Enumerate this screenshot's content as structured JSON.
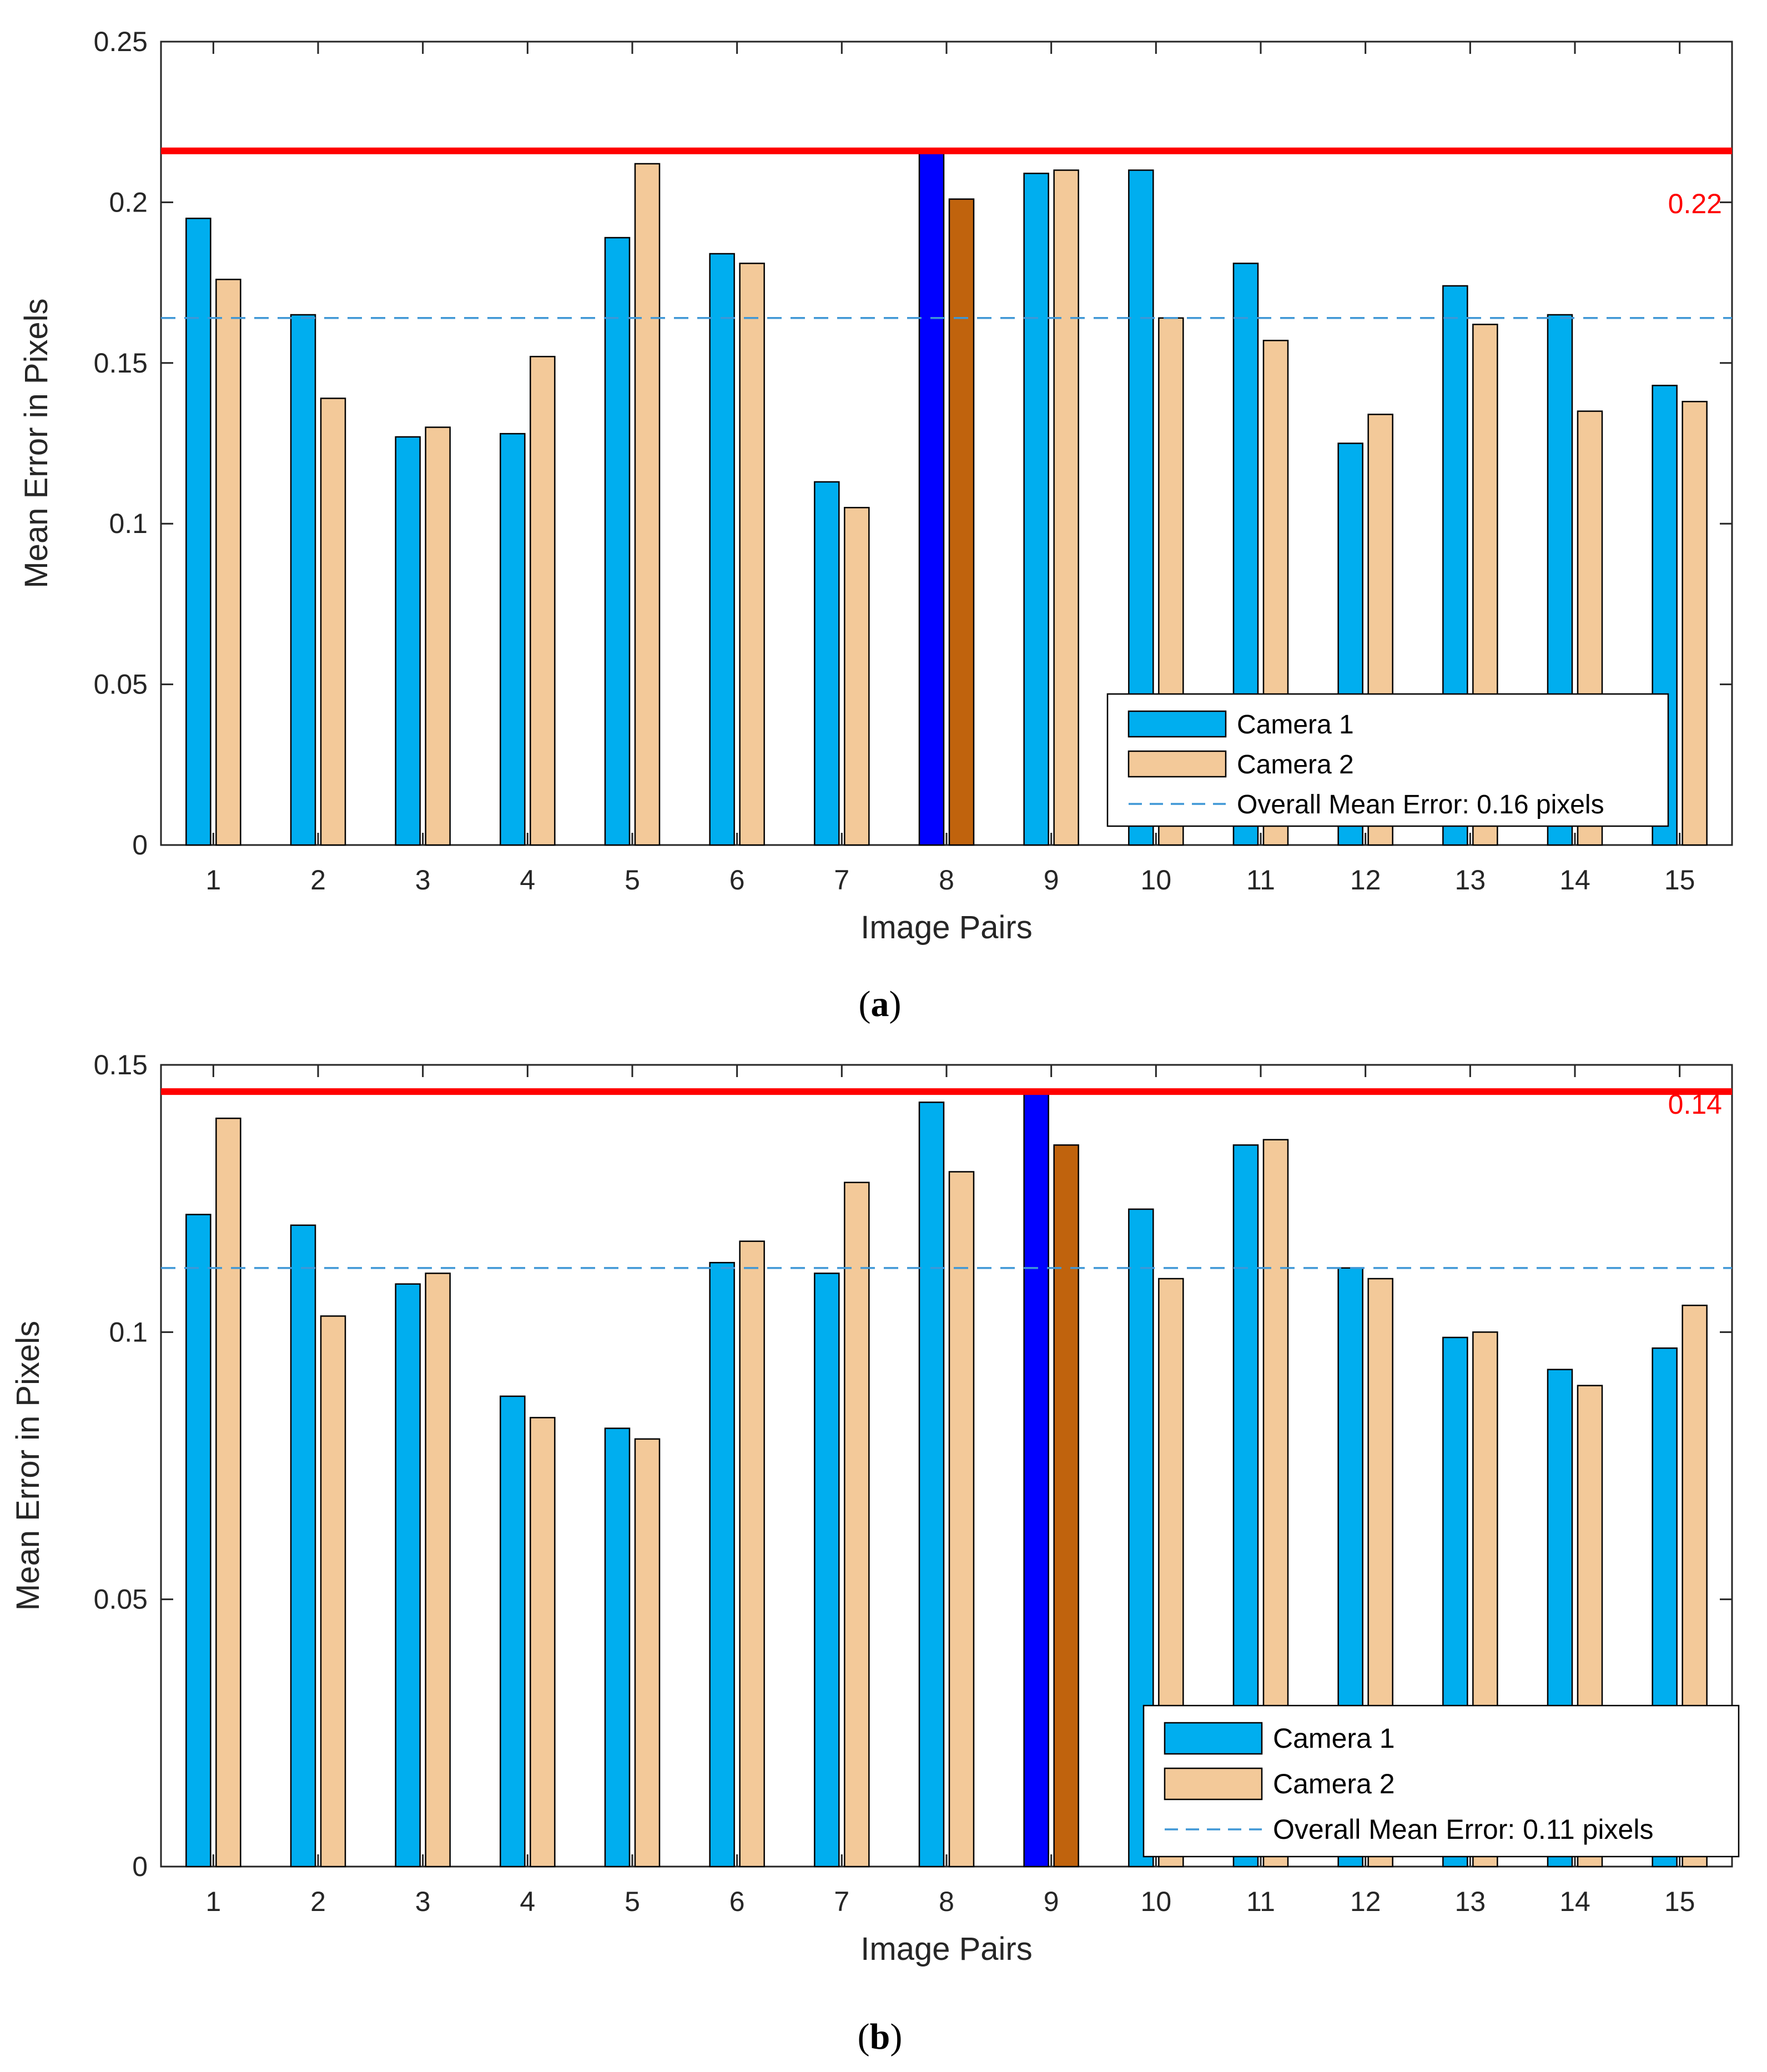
{
  "colors": {
    "camera1": "#00AEEF",
    "camera2": "#F3C999",
    "camera1_highlight": "#0000FF",
    "camera2_highlight": "#C0630D",
    "max_line": "#FF0000",
    "mean_line": "#3F97D6",
    "axis": "#262626"
  },
  "chart_data": [
    {
      "type": "bar",
      "panel": "a",
      "caption": {
        "open": "(",
        "letter": "a",
        "close": ")"
      },
      "xlabel": "Image Pairs",
      "ylabel": "Mean Error in Pixels",
      "categories": [
        "1",
        "2",
        "3",
        "4",
        "5",
        "6",
        "7",
        "8",
        "9",
        "10",
        "11",
        "12",
        "13",
        "14",
        "15"
      ],
      "series": [
        {
          "name": "Camera 1",
          "values": [
            0.195,
            0.165,
            0.127,
            0.128,
            0.189,
            0.184,
            0.113,
            0.216,
            0.209,
            0.21,
            0.181,
            0.125,
            0.174,
            0.165,
            0.143
          ]
        },
        {
          "name": "Camera 2",
          "values": [
            0.176,
            0.139,
            0.13,
            0.152,
            0.212,
            0.181,
            0.105,
            0.201,
            0.21,
            0.164,
            0.157,
            0.134,
            0.162,
            0.135,
            0.138
          ]
        }
      ],
      "highlight_index": 7,
      "ylim": [
        0,
        0.25
      ],
      "yticks": [
        "0",
        "0.05",
        "0.1",
        "0.15",
        "0.2",
        "0.25"
      ],
      "ytick_values": [
        0,
        0.05,
        0.1,
        0.15,
        0.2,
        0.25
      ],
      "max_line": {
        "value": 0.216,
        "label": "0.22"
      },
      "mean_line": {
        "value": 0.164,
        "label": "Overall Mean Error: 0.16 pixels"
      },
      "legend": {
        "position": "bottom-right",
        "entries": [
          "Camera 1",
          "Camera 2",
          "Overall Mean Error: 0.16 pixels"
        ]
      }
    },
    {
      "type": "bar",
      "panel": "b",
      "caption": {
        "open": "(",
        "letter": "b",
        "close": ")"
      },
      "xlabel": "Image Pairs",
      "ylabel": "Mean Error in Pixels",
      "categories": [
        "1",
        "2",
        "3",
        "4",
        "5",
        "6",
        "7",
        "8",
        "9",
        "10",
        "11",
        "12",
        "13",
        "14",
        "15"
      ],
      "series": [
        {
          "name": "Camera 1",
          "values": [
            0.122,
            0.12,
            0.109,
            0.088,
            0.082,
            0.113,
            0.111,
            0.143,
            0.145,
            0.123,
            0.135,
            0.112,
            0.099,
            0.093,
            0.097
          ]
        },
        {
          "name": "Camera 2",
          "values": [
            0.14,
            0.103,
            0.111,
            0.084,
            0.08,
            0.117,
            0.128,
            0.13,
            0.135,
            0.11,
            0.136,
            0.11,
            0.1,
            0.09,
            0.105
          ]
        }
      ],
      "highlight_index": 8,
      "ylim": [
        0,
        0.15
      ],
      "yticks": [
        "0",
        "0.05",
        "0.1",
        "0.15"
      ],
      "ytick_values": [
        0,
        0.05,
        0.1,
        0.15
      ],
      "max_line": {
        "value": 0.145,
        "label": "0.14"
      },
      "mean_line": {
        "value": 0.112,
        "label": "Overall Mean Error: 0.11 pixels"
      },
      "legend": {
        "position": "bottom-right",
        "entries": [
          "Camera 1",
          "Camera 2",
          "Overall Mean Error: 0.11 pixels"
        ]
      }
    }
  ]
}
